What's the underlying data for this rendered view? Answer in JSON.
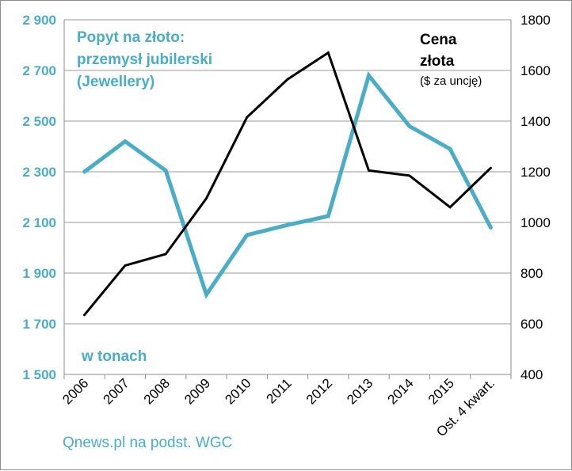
{
  "chart_data": {
    "type": "line",
    "categories": [
      "2006",
      "2007",
      "2008",
      "2009",
      "2010",
      "2011",
      "2012",
      "2013",
      "2014",
      "2015",
      "Ost. 4 kwart."
    ],
    "series": [
      {
        "name": "Popyt na złoto: przemysł jubilerski (Jewellery)",
        "axis": "left",
        "color": "#4bacc6",
        "values": [
          2300,
          2420,
          2305,
          1815,
          2050,
          2090,
          2125,
          2680,
          2480,
          2390,
          2080
        ]
      },
      {
        "name": "Cena złota",
        "axis": "right",
        "color": "#000000",
        "values": [
          635,
          830,
          875,
          1095,
          1415,
          1565,
          1670,
          1205,
          1185,
          1060,
          1215
        ]
      }
    ],
    "left_axis": {
      "ylim": [
        1500,
        2900
      ],
      "ticks": [
        1500,
        1700,
        1900,
        2100,
        2300,
        2500,
        2700,
        2900
      ],
      "tick_labels": [
        "1 500",
        "1 700",
        "1 900",
        "2 100",
        "2 300",
        "2 500",
        "2 700",
        "2 900"
      ]
    },
    "right_axis": {
      "ylim": [
        400,
        1800
      ],
      "ticks": [
        400,
        600,
        800,
        1000,
        1200,
        1400,
        1600,
        1800
      ],
      "tick_labels": [
        "400",
        "600",
        "800",
        "1000",
        "1200",
        "1400",
        "1600",
        "1800"
      ]
    },
    "left_title_lines": [
      "Popyt na złoto:",
      "przemysł jubilerski",
      "(Jewellery)"
    ],
    "right_title_lines": [
      "Cena",
      "złota"
    ],
    "right_subtitle": "($ za uncję)",
    "units_label": "w tonach",
    "source": "Qnews.pl na podst. WGC",
    "grid": true
  }
}
